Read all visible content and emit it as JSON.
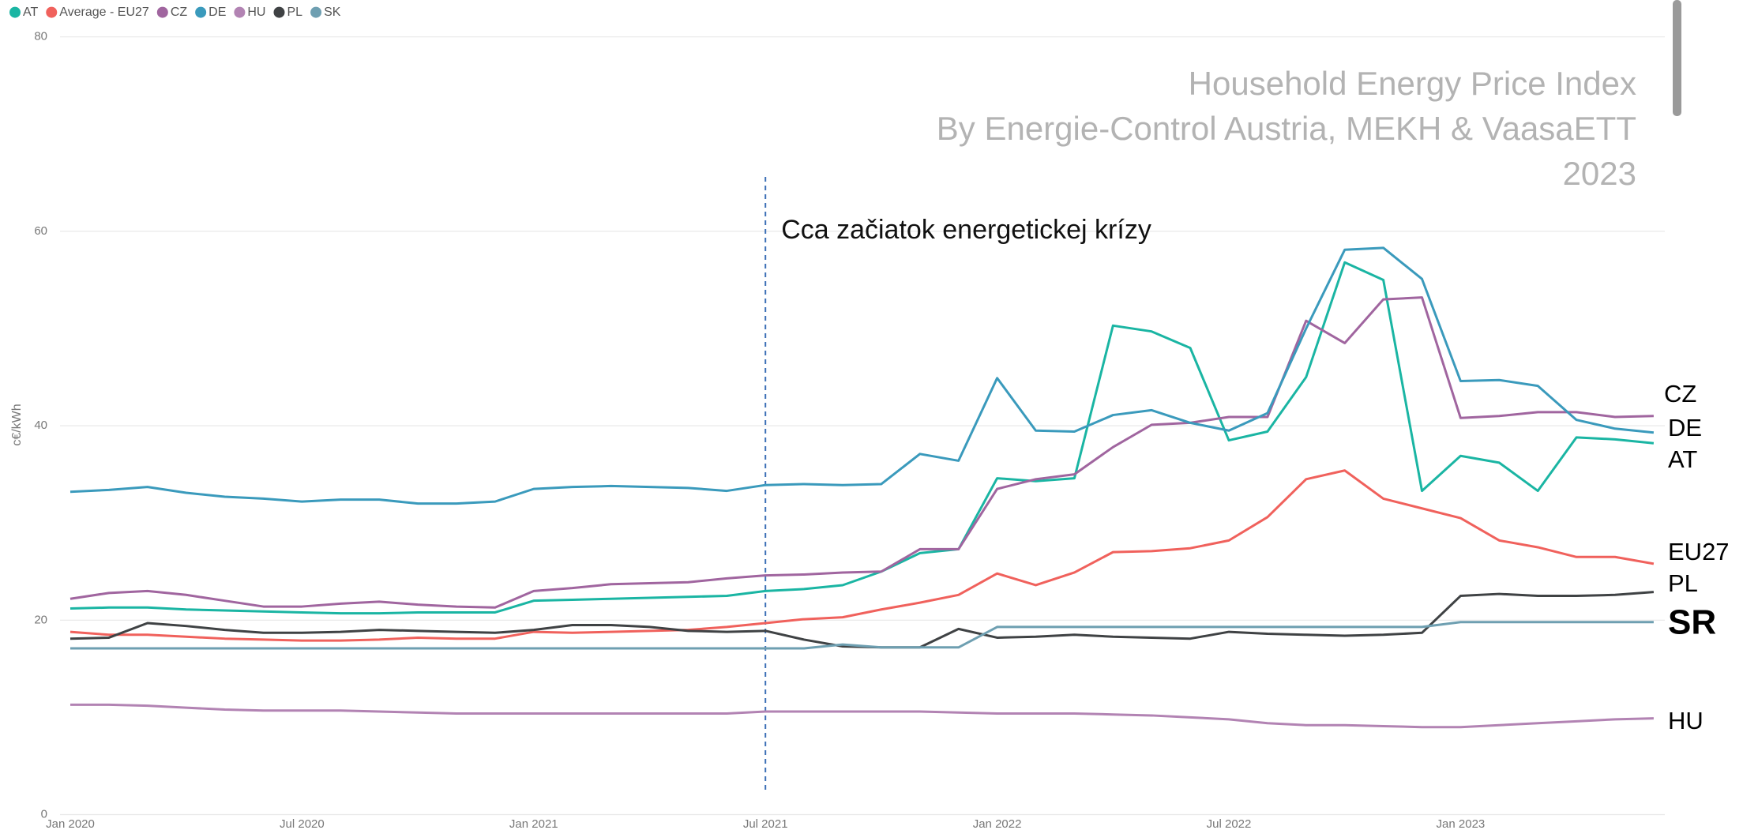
{
  "chart_data": {
    "type": "line",
    "title": [
      "Household Energy Price Index",
      "By Energie-Control Austria, MEKH & VaasaETT",
      "2023"
    ],
    "y_label": "c€/kWh",
    "annotation": {
      "text": "Cca začiatok energetickej krízy",
      "x": "Jul 2021"
    },
    "categories": [
      "Jan 2020",
      null,
      null,
      null,
      null,
      null,
      "Jul 2020",
      null,
      null,
      null,
      null,
      null,
      "Jan 2021",
      null,
      null,
      null,
      null,
      null,
      "Jul 2021",
      null,
      null,
      null,
      null,
      null,
      "Jan 2022",
      null,
      null,
      null,
      null,
      null,
      "Jul 2022",
      null,
      null,
      null,
      null,
      null,
      "Jan 2023",
      null,
      null,
      null,
      null,
      null
    ],
    "ylim": [
      0,
      80
    ],
    "yticks": [
      0,
      20,
      40,
      60,
      80
    ],
    "grid": true,
    "legend": "top-left",
    "series": [
      {
        "name": "AT",
        "label": "AT",
        "color": "#1ab5a3",
        "values": [
          21.2,
          21.3,
          21.3,
          21.1,
          21.0,
          20.9,
          20.8,
          20.7,
          20.7,
          20.8,
          20.8,
          20.8,
          22.0,
          22.1,
          22.2,
          22.3,
          22.4,
          22.5,
          23.0,
          23.2,
          23.6,
          25.0,
          26.9,
          27.3,
          34.6,
          34.3,
          34.6,
          50.3,
          49.7,
          48.0,
          38.5,
          39.4,
          45.0,
          56.8,
          55.0,
          33.3,
          36.9,
          36.2,
          33.3,
          38.8,
          38.6,
          38.2
        ]
      },
      {
        "name": "Average - EU27",
        "label": "EU27",
        "color": "#f0615c",
        "values": [
          18.8,
          18.5,
          18.5,
          18.3,
          18.1,
          18.0,
          17.9,
          17.9,
          18.0,
          18.2,
          18.1,
          18.1,
          18.8,
          18.7,
          18.8,
          18.9,
          19.0,
          19.3,
          19.7,
          20.1,
          20.3,
          21.1,
          21.8,
          22.6,
          24.8,
          23.6,
          24.9,
          27.0,
          27.1,
          27.4,
          28.2,
          30.6,
          34.5,
          35.4,
          32.5,
          31.5,
          30.5,
          28.2,
          27.5,
          26.5,
          26.5,
          25.8
        ]
      },
      {
        "name": "CZ",
        "label": "CZ",
        "color": "#a0659f",
        "values": [
          22.2,
          22.8,
          23.0,
          22.6,
          22.0,
          21.4,
          21.4,
          21.7,
          21.9,
          21.6,
          21.4,
          21.3,
          23.0,
          23.3,
          23.7,
          23.8,
          23.9,
          24.3,
          24.6,
          24.7,
          24.9,
          25.0,
          27.3,
          27.3,
          33.5,
          34.5,
          35.0,
          37.8,
          40.1,
          40.3,
          40.9,
          40.9,
          50.8,
          48.5,
          53.0,
          53.2,
          40.8,
          41.0,
          41.4,
          41.4,
          40.9,
          41.0
        ]
      },
      {
        "name": "DE",
        "label": "DE",
        "color": "#3a9abc",
        "values": [
          33.2,
          33.4,
          33.7,
          33.1,
          32.7,
          32.5,
          32.2,
          32.4,
          32.4,
          32.0,
          32.0,
          32.2,
          33.5,
          33.7,
          33.8,
          33.7,
          33.6,
          33.3,
          33.9,
          34.0,
          33.9,
          34.0,
          37.1,
          36.4,
          44.9,
          39.5,
          39.4,
          41.1,
          41.6,
          40.3,
          39.5,
          41.3,
          50.0,
          58.1,
          58.3,
          55.1,
          44.6,
          44.7,
          44.1,
          40.6,
          39.7,
          39.3
        ]
      },
      {
        "name": "HU",
        "label": "HU",
        "color": "#b283b3",
        "values": [
          11.3,
          11.3,
          11.2,
          11.0,
          10.8,
          10.7,
          10.7,
          10.7,
          10.6,
          10.5,
          10.4,
          10.4,
          10.4,
          10.4,
          10.4,
          10.4,
          10.4,
          10.4,
          10.6,
          10.6,
          10.6,
          10.6,
          10.6,
          10.5,
          10.4,
          10.4,
          10.4,
          10.3,
          10.2,
          10.0,
          9.8,
          9.4,
          9.2,
          9.2,
          9.1,
          9.0,
          9.0,
          9.2,
          9.4,
          9.6,
          9.8,
          9.9
        ]
      },
      {
        "name": "PL",
        "label": "PL",
        "color": "#3f4244",
        "values": [
          18.1,
          18.2,
          19.7,
          19.4,
          19.0,
          18.7,
          18.7,
          18.8,
          19.0,
          18.9,
          18.8,
          18.7,
          19.0,
          19.5,
          19.5,
          19.3,
          18.9,
          18.8,
          18.9,
          18.0,
          17.3,
          17.2,
          17.2,
          19.1,
          18.2,
          18.3,
          18.5,
          18.3,
          18.2,
          18.1,
          18.8,
          18.6,
          18.5,
          18.4,
          18.5,
          18.7,
          22.5,
          22.7,
          22.5,
          22.5,
          22.6,
          22.9
        ]
      },
      {
        "name": "SK",
        "label": "SR",
        "color": "#6e9fb1",
        "values": [
          17.1,
          17.1,
          17.1,
          17.1,
          17.1,
          17.1,
          17.1,
          17.1,
          17.1,
          17.1,
          17.1,
          17.1,
          17.1,
          17.1,
          17.1,
          17.1,
          17.1,
          17.1,
          17.1,
          17.1,
          17.5,
          17.2,
          17.2,
          17.2,
          19.3,
          19.3,
          19.3,
          19.3,
          19.3,
          19.3,
          19.3,
          19.3,
          19.3,
          19.3,
          19.3,
          19.3,
          19.8,
          19.8,
          19.8,
          19.8,
          19.8,
          19.8
        ]
      }
    ]
  }
}
